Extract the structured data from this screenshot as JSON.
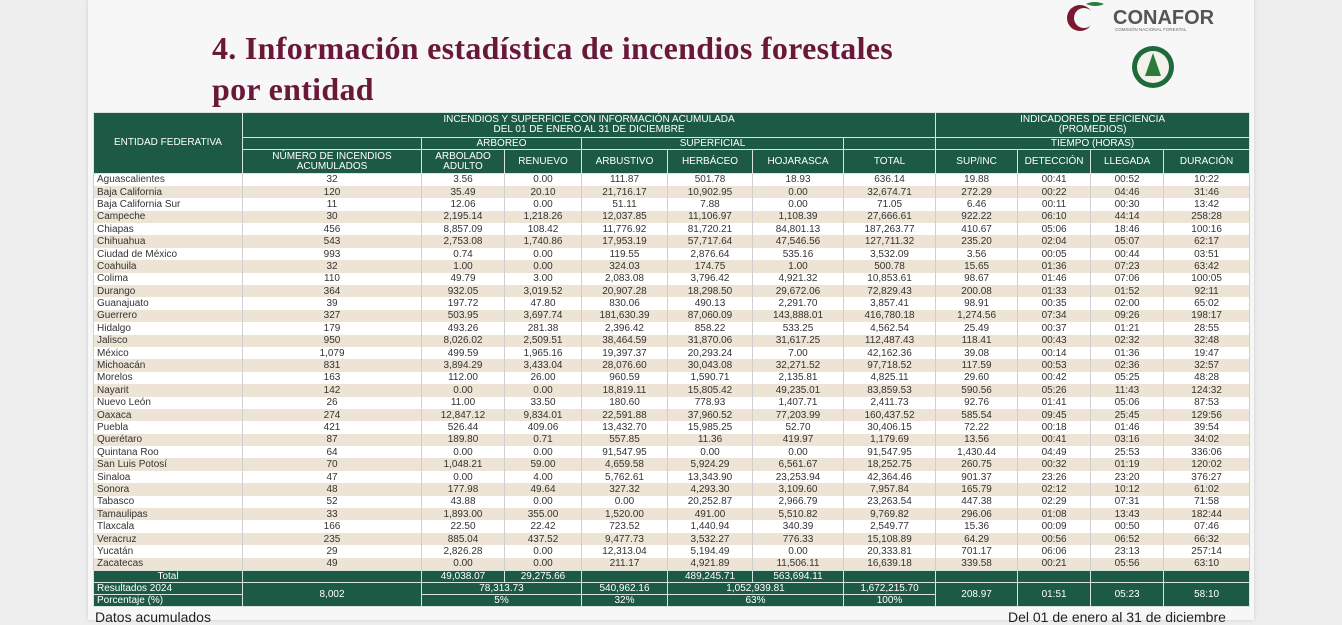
{
  "header": {
    "title_lines": [
      "4. Información estadística de incendios forestales",
      "por entidad"
    ],
    "logo_name": "CONAFOR",
    "logo_subtitle": "COMISIÓN NACIONAL FORESTAL"
  },
  "table": {
    "entity_header": "ENTIDAD FEDERATIVA",
    "group_left": [
      "INCENDIOS Y SUPERFICIE CON INFORMACIÓN ACUMULADA",
      "DEL 01 DE ENERO AL 31 DE DICIEMBRE"
    ],
    "group_right": [
      "INDICADORES DE EFICIENCIA",
      "(PROMEDIOS)"
    ],
    "sub_arboreo": "ARBÓREO",
    "sub_superficial": "SUPERFICIAL",
    "sub_tiempo": "TIEMPO (HORAS)",
    "columns": [
      "NÚMERO DE INCENDIOS ACUMULADOS",
      "ARBOLADO ADULTO",
      "RENUEVO",
      "ARBUSTIVO",
      "HERBÁCEO",
      "HOJARASCA",
      "TOTAL",
      "SUP/INC",
      "DETECCIÓN",
      "LLEGADA",
      "DURACIÓN"
    ],
    "rows": [
      [
        "Aguascalientes",
        "32",
        "3.56",
        "0.00",
        "111.87",
        "501.78",
        "18.93",
        "636.14",
        "19.88",
        "00:41",
        "00:52",
        "10:22"
      ],
      [
        "Baja California",
        "120",
        "35.49",
        "20.10",
        "21,716.17",
        "10,902.95",
        "0.00",
        "32,674.71",
        "272.29",
        "00:22",
        "04:46",
        "31:46"
      ],
      [
        "Baja California Sur",
        "11",
        "12.06",
        "0.00",
        "51.11",
        "7.88",
        "0.00",
        "71.05",
        "6.46",
        "00:11",
        "00:30",
        "13:42"
      ],
      [
        "Campeche",
        "30",
        "2,195.14",
        "1,218.26",
        "12,037.85",
        "11,106.97",
        "1,108.39",
        "27,666.61",
        "922.22",
        "06:10",
        "44:14",
        "258:28"
      ],
      [
        "Chiapas",
        "456",
        "8,857.09",
        "108.42",
        "11,776.92",
        "81,720.21",
        "84,801.13",
        "187,263.77",
        "410.67",
        "05:06",
        "18:46",
        "100:16"
      ],
      [
        "Chihuahua",
        "543",
        "2,753.08",
        "1,740.86",
        "17,953.19",
        "57,717.64",
        "47,546.56",
        "127,711.32",
        "235.20",
        "02:04",
        "05:07",
        "62:17"
      ],
      [
        "Ciudad de México",
        "993",
        "0.74",
        "0.00",
        "119.55",
        "2,876.64",
        "535.16",
        "3,532.09",
        "3.56",
        "00:05",
        "00:44",
        "03:51"
      ],
      [
        "Coahuila",
        "32",
        "1.00",
        "0.00",
        "324.03",
        "174.75",
        "1.00",
        "500.78",
        "15.65",
        "01:36",
        "07:23",
        "63:42"
      ],
      [
        "Colima",
        "110",
        "49.79",
        "3.00",
        "2,083.08",
        "3,796.42",
        "4,921.32",
        "10,853.61",
        "98.67",
        "01:46",
        "07:06",
        "100:05"
      ],
      [
        "Durango",
        "364",
        "932.05",
        "3,019.52",
        "20,907.28",
        "18,298.50",
        "29,672.06",
        "72,829.43",
        "200.08",
        "01:33",
        "01:52",
        "92:11"
      ],
      [
        "Guanajuato",
        "39",
        "197.72",
        "47.80",
        "830.06",
        "490.13",
        "2,291.70",
        "3,857.41",
        "98.91",
        "00:35",
        "02:00",
        "65:02"
      ],
      [
        "Guerrero",
        "327",
        "503.95",
        "3,697.74",
        "181,630.39",
        "87,060.09",
        "143,888.01",
        "416,780.18",
        "1,274.56",
        "07:34",
        "09:26",
        "198:17"
      ],
      [
        "Hidalgo",
        "179",
        "493.26",
        "281.38",
        "2,396.42",
        "858.22",
        "533.25",
        "4,562.54",
        "25.49",
        "00:37",
        "01:21",
        "28:55"
      ],
      [
        "Jalisco",
        "950",
        "8,026.02",
        "2,509.51",
        "38,464.59",
        "31,870.06",
        "31,617.25",
        "112,487.43",
        "118.41",
        "00:43",
        "02:32",
        "32:48"
      ],
      [
        "México",
        "1,079",
        "499.59",
        "1,965.16",
        "19,397.37",
        "20,293.24",
        "7.00",
        "42,162.36",
        "39.08",
        "00:14",
        "01:36",
        "19:47"
      ],
      [
        "Michoacán",
        "831",
        "3,894.29",
        "3,433.04",
        "28,076.60",
        "30,043.08",
        "32,271.52",
        "97,718.52",
        "117.59",
        "00:53",
        "02:36",
        "32:57"
      ],
      [
        "Morelos",
        "163",
        "112.00",
        "26.00",
        "960.59",
        "1,590.71",
        "2,135.81",
        "4,825.11",
        "29.60",
        "00:42",
        "05:25",
        "48:28"
      ],
      [
        "Nayarit",
        "142",
        "0.00",
        "0.00",
        "18,819.11",
        "15,805.42",
        "49,235.01",
        "83,859.53",
        "590.56",
        "05:26",
        "11:43",
        "124:32"
      ],
      [
        "Nuevo León",
        "26",
        "11.00",
        "33.50",
        "180.60",
        "778.93",
        "1,407.71",
        "2,411.73",
        "92.76",
        "01:41",
        "05:06",
        "87:53"
      ],
      [
        "Oaxaca",
        "274",
        "12,847.12",
        "9,834.01",
        "22,591.88",
        "37,960.52",
        "77,203.99",
        "160,437.52",
        "585.54",
        "09:45",
        "25:45",
        "129:56"
      ],
      [
        "Puebla",
        "421",
        "526.44",
        "409.06",
        "13,432.70",
        "15,985.25",
        "52.70",
        "30,406.15",
        "72.22",
        "00:18",
        "01:46",
        "39:54"
      ],
      [
        "Querétaro",
        "87",
        "189.80",
        "0.71",
        "557.85",
        "11.36",
        "419.97",
        "1,179.69",
        "13.56",
        "00:41",
        "03:16",
        "34:02"
      ],
      [
        "Quintana Roo",
        "64",
        "0.00",
        "0.00",
        "91,547.95",
        "0.00",
        "0.00",
        "91,547.95",
        "1,430.44",
        "04:49",
        "25:53",
        "336:06"
      ],
      [
        "San Luis Potosí",
        "70",
        "1,048.21",
        "59.00",
        "4,659.58",
        "5,924.29",
        "6,561.67",
        "18,252.75",
        "260.75",
        "00:32",
        "01:19",
        "120:02"
      ],
      [
        "Sinaloa",
        "47",
        "0.00",
        "4.00",
        "5,762.61",
        "13,343.90",
        "23,253.94",
        "42,364.46",
        "901.37",
        "23:26",
        "23:20",
        "376:27"
      ],
      [
        "Sonora",
        "48",
        "177.98",
        "49.64",
        "327.32",
        "4,293.30",
        "3,109.60",
        "7,957.84",
        "165.79",
        "02:12",
        "10:12",
        "61:02"
      ],
      [
        "Tabasco",
        "52",
        "43.88",
        "0.00",
        "0.00",
        "20,252.87",
        "2,966.79",
        "23,263.54",
        "447.38",
        "02:29",
        "07:31",
        "71:58"
      ],
      [
        "Tamaulipas",
        "33",
        "1,893.00",
        "355.00",
        "1,520.00",
        "491.00",
        "5,510.82",
        "9,769.82",
        "296.06",
        "01:08",
        "13:43",
        "182:44"
      ],
      [
        "Tlaxcala",
        "166",
        "22.50",
        "22.42",
        "723.52",
        "1,440.94",
        "340.39",
        "2,549.77",
        "15.36",
        "00:09",
        "00:50",
        "07:46"
      ],
      [
        "Veracruz",
        "235",
        "885.04",
        "437.52",
        "9,477.73",
        "3,532.27",
        "776.33",
        "15,108.89",
        "64.29",
        "00:56",
        "06:52",
        "66:32"
      ],
      [
        "Yucatán",
        "29",
        "2,826.28",
        "0.00",
        "12,313.04",
        "5,194.49",
        "0.00",
        "20,333.81",
        "701.17",
        "06:06",
        "23:13",
        "257:14"
      ],
      [
        "Zacatecas",
        "49",
        "0.00",
        "0.00",
        "211.17",
        "4,921.89",
        "11,506.11",
        "16,639.18",
        "339.58",
        "00:21",
        "05:56",
        "63:10"
      ]
    ],
    "total": {
      "label": "Total",
      "arbolado": "49,038.07",
      "renuevo": "29,275.66",
      "herbaceo": "489,245.71",
      "hojarasca": "563,694.11"
    },
    "results": {
      "label": "Resultados 2024",
      "incendios": "8,002",
      "arboreo": "78,313.73",
      "arbustivo": "540,962.16",
      "herb_hoj": "1,052,939.81",
      "total": "1,672,215.70",
      "sup_inc": "208.97",
      "deteccion": "01:51",
      "llegada": "05:23",
      "duracion": "58:10"
    },
    "percent": {
      "label": "Porcentaje (%)",
      "arboreo": "5%",
      "arbustivo": "32%",
      "herb_hoj": "63%",
      "total": "100%"
    }
  },
  "footer": {
    "left": "Datos acumulados",
    "right": "Del 01 de enero al 31 de diciembre"
  }
}
